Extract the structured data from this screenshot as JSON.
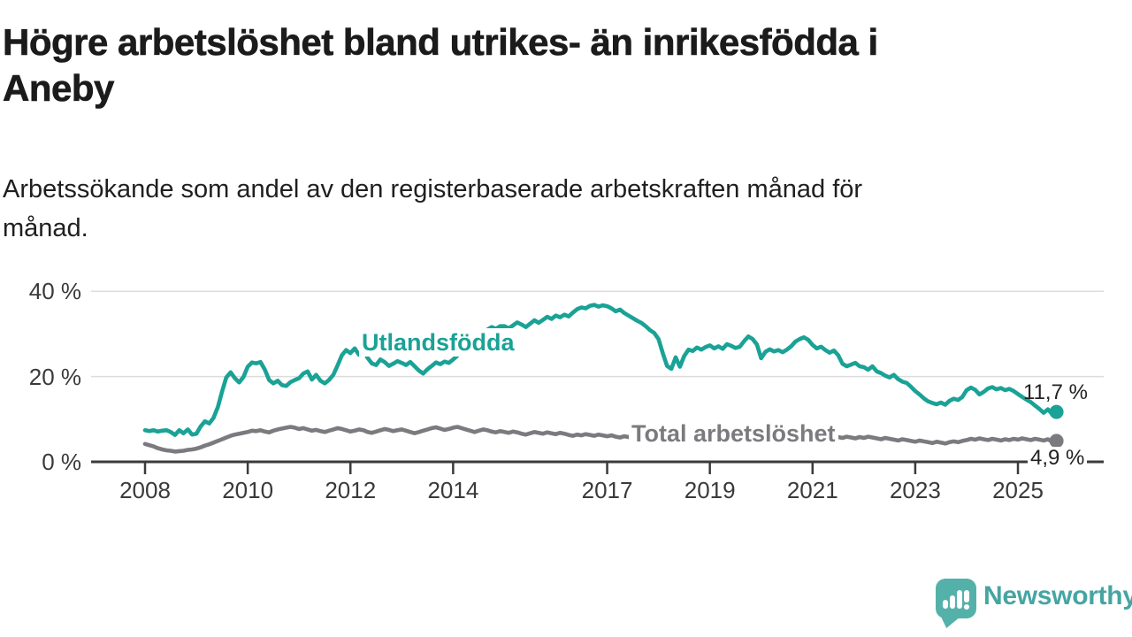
{
  "title": {
    "full": "Högre arbetslöshet bland utrikes- än inrikesfödda i Aneby",
    "line1": "Högre arbetslöshet bland utrikes- än inrikesfödda i",
    "line2": "Aneby"
  },
  "subtitle": {
    "full": "Arbetssökande som andel av den registerbaserade arbetskraften månad för månad.",
    "line1": "Arbetssökande som andel av den registerbaserade arbetskraften månad för",
    "line2": "månad."
  },
  "branding": {
    "name": "Newsworthy",
    "icon": "newsworthy-speech-bubble-bar-chart-icon",
    "bubble_color": "#54B1AA",
    "text_color": "#46A5A2"
  },
  "colors": {
    "background": "#ffffff",
    "axis": "#3b3b3b",
    "grid": "#dcdcdc",
    "tick_label": "#3a3a3a",
    "series_foreign_born": "#1AA296",
    "series_total": "#7B7B7F",
    "end_label_text": "#222222"
  },
  "chart_data": {
    "type": "line",
    "frequency": "monthly",
    "x_start": "2008-01",
    "x_end": "2025-10",
    "x_tick_years": [
      2008,
      2010,
      2012,
      2014,
      2017,
      2019,
      2021,
      2023,
      2025
    ],
    "y_ticks": [
      {
        "value": 0,
        "label": "0 %"
      },
      {
        "value": 20,
        "label": "20 %"
      },
      {
        "value": 40,
        "label": "40 %"
      }
    ],
    "ylim": [
      0,
      42
    ],
    "grid": "horizontal",
    "legend_position": "inline-labels",
    "series": [
      {
        "name": "Utlandsfödda",
        "color": "#1AA296",
        "end_value": 11.7,
        "end_label": "11,7 %",
        "values": [
          7.4,
          7.2,
          7.4,
          7.1,
          7.3,
          7.4,
          7.0,
          6.3,
          7.4,
          6.7,
          7.6,
          6.4,
          6.6,
          8.3,
          9.5,
          9.0,
          10.3,
          12.8,
          16.5,
          19.8,
          21.0,
          19.6,
          18.6,
          19.9,
          22.3,
          23.3,
          23.1,
          23.4,
          21.6,
          19.2,
          18.4,
          19.0,
          18.0,
          17.8,
          18.7,
          19.2,
          19.6,
          20.7,
          21.2,
          19.3,
          20.4,
          19.0,
          18.4,
          19.2,
          20.4,
          22.6,
          25.0,
          26.2,
          25.5,
          26.6,
          25.1,
          26.2,
          24.4,
          23.1,
          22.7,
          24.0,
          23.4,
          22.5,
          23.0,
          23.6,
          23.2,
          22.7,
          23.4,
          22.4,
          21.4,
          20.7,
          21.7,
          22.5,
          23.3,
          22.9,
          23.5,
          23.2,
          24.0,
          24.9,
          26.2,
          27.8,
          29.0,
          30.2,
          30.8,
          30.4,
          31.0,
          31.6,
          31.2,
          31.8,
          31.8,
          31.3,
          32.0,
          32.7,
          32.2,
          31.6,
          32.4,
          33.2,
          32.6,
          33.3,
          34.0,
          33.5,
          34.3,
          33.9,
          34.5,
          34.1,
          35.0,
          35.8,
          36.2,
          36.0,
          36.6,
          36.8,
          36.4,
          36.7,
          36.5,
          36.0,
          35.3,
          35.7,
          34.9,
          34.3,
          33.7,
          33.1,
          32.6,
          31.8,
          30.9,
          30.2,
          28.8,
          25.5,
          22.5,
          21.8,
          24.5,
          22.3,
          24.8,
          26.3,
          26.0,
          26.8,
          26.3,
          26.9,
          27.3,
          26.6,
          27.1,
          26.5,
          27.6,
          27.2,
          26.7,
          27.0,
          28.3,
          29.4,
          28.8,
          27.5,
          24.3,
          25.8,
          26.4,
          25.9,
          26.2,
          25.7,
          26.3,
          27.1,
          28.2,
          28.8,
          29.2,
          28.6,
          27.4,
          26.6,
          27.0,
          26.2,
          25.6,
          26.1,
          25.0,
          23.0,
          22.4,
          22.8,
          23.2,
          22.4,
          22.2,
          21.6,
          22.4,
          21.2,
          20.8,
          20.2,
          19.8,
          20.4,
          19.4,
          18.8,
          18.5,
          17.6,
          16.6,
          15.8,
          14.9,
          14.2,
          13.8,
          13.5,
          13.9,
          13.4,
          14.3,
          14.8,
          14.5,
          15.2,
          16.8,
          17.4,
          16.9,
          15.8,
          16.4,
          17.2,
          17.5,
          17.0,
          17.3,
          16.8,
          17.1,
          16.6,
          15.9,
          15.2,
          14.6,
          14.0,
          13.2,
          12.4,
          11.5,
          12.3,
          11.2,
          11.7
        ]
      },
      {
        "name": "Total arbetslöshet",
        "color": "#7B7B7F",
        "end_value": 4.9,
        "end_label": "4,9 %",
        "values": [
          4.2,
          3.9,
          3.6,
          3.2,
          2.9,
          2.7,
          2.6,
          2.4,
          2.5,
          2.6,
          2.8,
          2.9,
          3.1,
          3.4,
          3.8,
          4.1,
          4.5,
          4.9,
          5.3,
          5.7,
          6.1,
          6.4,
          6.6,
          6.8,
          7.0,
          7.3,
          7.2,
          7.4,
          7.1,
          6.9,
          7.3,
          7.6,
          7.8,
          8.0,
          8.2,
          8.0,
          7.7,
          7.9,
          7.6,
          7.3,
          7.5,
          7.2,
          7.0,
          7.3,
          7.6,
          7.9,
          7.7,
          7.4,
          7.1,
          7.3,
          7.6,
          7.4,
          7.0,
          6.8,
          7.1,
          7.4,
          7.7,
          7.5,
          7.2,
          7.4,
          7.6,
          7.3,
          7.0,
          6.7,
          7.0,
          7.3,
          7.6,
          7.9,
          8.1,
          7.8,
          7.5,
          7.7,
          8.0,
          8.2,
          7.9,
          7.6,
          7.3,
          7.0,
          7.3,
          7.6,
          7.4,
          7.1,
          6.9,
          7.2,
          7.0,
          6.8,
          7.1,
          6.9,
          6.6,
          6.4,
          6.7,
          7.0,
          6.8,
          6.6,
          6.9,
          6.7,
          6.5,
          6.8,
          6.6,
          6.3,
          6.1,
          6.4,
          6.2,
          6.5,
          6.3,
          6.1,
          6.4,
          6.2,
          6.0,
          6.2,
          5.9,
          5.7,
          6.0,
          5.8,
          5.6,
          5.9,
          5.7,
          5.5,
          5.8,
          5.6,
          5.4,
          5.7,
          5.5,
          5.3,
          5.6,
          5.4,
          5.2,
          5.5,
          5.3,
          5.6,
          5.4,
          5.7,
          5.5,
          5.8,
          5.6,
          5.4,
          5.7,
          5.5,
          5.3,
          5.6,
          5.8,
          5.6,
          5.9,
          5.7,
          5.5,
          5.8,
          6.0,
          6.3,
          6.1,
          6.4,
          6.2,
          6.0,
          6.3,
          6.1,
          5.9,
          6.2,
          6.0,
          6.3,
          6.1,
          5.9,
          6.2,
          6.0,
          5.8,
          5.6,
          5.9,
          5.7,
          5.5,
          5.8,
          5.6,
          5.9,
          5.7,
          5.5,
          5.3,
          5.6,
          5.4,
          5.2,
          5.0,
          5.3,
          5.1,
          4.9,
          4.7,
          5.0,
          4.8,
          4.6,
          4.4,
          4.7,
          4.5,
          4.3,
          4.6,
          4.8,
          4.6,
          4.9,
          5.1,
          5.4,
          5.2,
          5.5,
          5.3,
          5.1,
          5.4,
          5.2,
          5.0,
          5.3,
          5.1,
          5.4,
          5.2,
          5.5,
          5.3,
          5.1,
          5.4,
          5.2,
          5.0,
          5.3,
          4.7,
          4.9
        ]
      }
    ]
  }
}
